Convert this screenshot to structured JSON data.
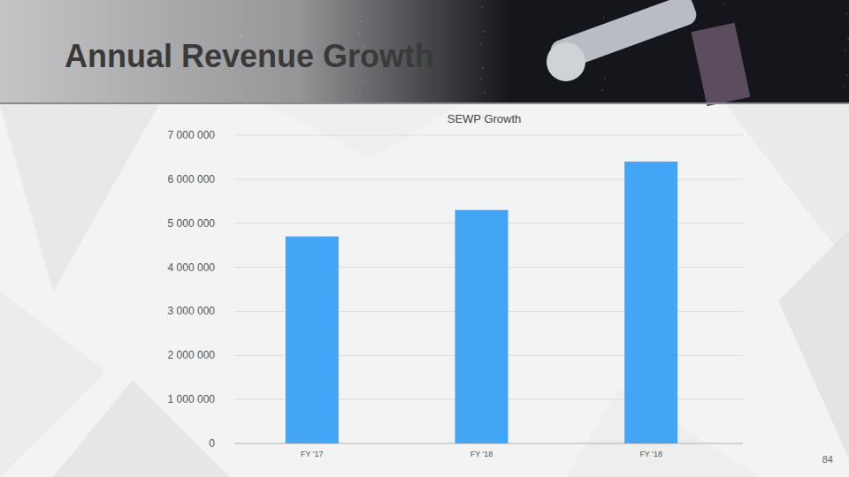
{
  "slide": {
    "title": "Annual Revenue Growth",
    "page_number": "84"
  },
  "chart_data": {
    "type": "bar",
    "title": "SEWP Growth",
    "categories": [
      "FY '17",
      "FY '18",
      "FY '18"
    ],
    "values": [
      4700000,
      5300000,
      6400000
    ],
    "color": "#42a5f5",
    "ylim": [
      0,
      7000000
    ],
    "yticks": [
      0,
      {
        "value": 1000000,
        "label": "1 000 000"
      },
      {
        "value": 2000000,
        "label": "2 000 000"
      },
      {
        "value": 3000000,
        "label": "3 000 000"
      },
      {
        "value": 4000000,
        "label": "4 000 000"
      },
      {
        "value": 5000000,
        "label": "5 000 000"
      },
      {
        "value": 6000000,
        "label": "6 000 000"
      },
      {
        "value": 7000000,
        "label": "7 000 000"
      }
    ],
    "grid": true
  }
}
